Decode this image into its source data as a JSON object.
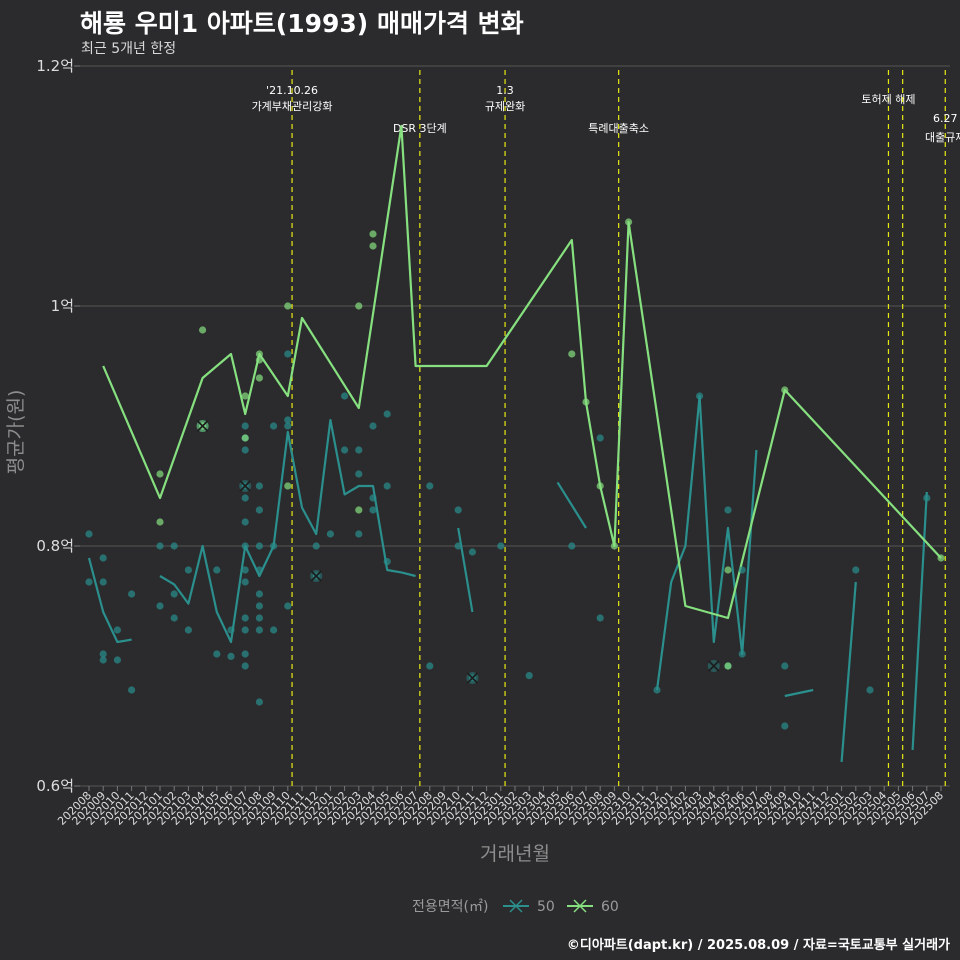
{
  "title": "해룡 우미1 아파트(1993) 매매가격 변화",
  "subtitle": "최근 5개년 한정",
  "caption": "©디아파트(dapt.kr) / 2025.08.09 / 자료=국토교통부 실거래가",
  "colors": {
    "background": "#2b2b2d",
    "s50": "#2a8f8d",
    "s60": "#86e07f",
    "event": "#e8e812",
    "grid": "#555555"
  },
  "chart_data": {
    "type": "line",
    "xlabel": "거래년월",
    "ylabel": "평균가(원)",
    "ylim": [
      0.6,
      1.2
    ],
    "yticks": [
      0.6,
      0.8,
      1.0,
      1.2
    ],
    "yticklabels": [
      "0.6억",
      "0.8억",
      "1억",
      "1.2억"
    ],
    "x": [
      "202008",
      "202009",
      "202010",
      "202011",
      "202012",
      "202101",
      "202102",
      "202103",
      "202104",
      "202105",
      "202106",
      "202107",
      "202108",
      "202109",
      "202110",
      "202111",
      "202112",
      "202201",
      "202202",
      "202203",
      "202204",
      "202205",
      "202206",
      "202207",
      "202208",
      "202209",
      "202210",
      "202211",
      "202212",
      "202301",
      "202302",
      "202303",
      "202304",
      "202305",
      "202306",
      "202307",
      "202308",
      "202309",
      "202310",
      "202311",
      "202312",
      "202401",
      "202402",
      "202403",
      "202404",
      "202405",
      "202406",
      "202407",
      "202408",
      "202409",
      "202410",
      "202411",
      "202412",
      "202501",
      "202502",
      "202503",
      "202504",
      "202505",
      "202506",
      "202507",
      "202508"
    ],
    "legend_title": "전용면적(㎡)",
    "legend_position": "bottom",
    "series": [
      {
        "name": "50",
        "color": "#2a8f8d",
        "lines": [
          [
            [
              0,
              0.79
            ],
            [
              1,
              0.745
            ],
            [
              2,
              0.72
            ],
            [
              3,
              0.722
            ]
          ],
          [
            [
              5,
              0.775
            ],
            [
              6,
              0.768
            ],
            [
              7,
              0.752
            ],
            [
              8,
              0.8
            ],
            [
              9,
              0.745
            ],
            [
              10,
              0.72
            ],
            [
              11,
              0.8
            ],
            [
              12,
              0.775
            ],
            [
              13,
              0.8
            ],
            [
              14,
              0.895
            ],
            [
              15,
              0.832
            ],
            [
              16,
              0.81
            ],
            [
              17,
              0.905
            ],
            [
              18,
              0.843
            ],
            [
              19,
              0.85
            ],
            [
              20,
              0.85
            ],
            [
              21,
              0.78
            ],
            [
              22,
              0.778
            ],
            [
              23,
              0.775
            ]
          ],
          [
            [
              26,
              0.815
            ],
            [
              27,
              0.745
            ]
          ],
          [
            [
              33,
              0.853
            ],
            [
              35,
              0.815
            ]
          ],
          [
            [
              40,
              0.68
            ],
            [
              41,
              0.77
            ],
            [
              42,
              0.8
            ],
            [
              43,
              0.925
            ],
            [
              44,
              0.72
            ],
            [
              45,
              0.815
            ],
            [
              46,
              0.71
            ],
            [
              47,
              0.88
            ]
          ],
          [
            [
              49,
              0.675
            ],
            [
              51,
              0.68
            ]
          ],
          [
            [
              53,
              0.62
            ],
            [
              54,
              0.77
            ]
          ],
          [
            [
              58,
              0.63
            ],
            [
              59,
              0.845
            ]
          ]
        ],
        "points": [
          [
            0,
            0.81
          ],
          [
            0,
            0.77
          ],
          [
            1,
            0.79
          ],
          [
            1,
            0.77
          ],
          [
            1,
            0.71
          ],
          [
            1,
            0.705
          ],
          [
            2,
            0.73
          ],
          [
            2,
            0.705
          ],
          [
            3,
            0.76
          ],
          [
            3,
            0.68
          ],
          [
            5,
            0.8
          ],
          [
            5,
            0.75
          ],
          [
            6,
            0.8
          ],
          [
            6,
            0.76
          ],
          [
            6,
            0.74
          ],
          [
            7,
            0.78
          ],
          [
            7,
            0.73
          ],
          [
            8,
            0.9
          ],
          [
            9,
            0.78
          ],
          [
            9,
            0.71
          ],
          [
            10,
            0.73
          ],
          [
            10,
            0.708
          ],
          [
            11,
            0.9
          ],
          [
            11,
            0.89
          ],
          [
            11,
            0.88
          ],
          [
            11,
            0.85
          ],
          [
            11,
            0.84
          ],
          [
            11,
            0.82
          ],
          [
            11,
            0.8
          ],
          [
            11,
            0.78
          ],
          [
            11,
            0.77
          ],
          [
            11,
            0.74
          ],
          [
            11,
            0.73
          ],
          [
            11,
            0.71
          ],
          [
            11,
            0.7
          ],
          [
            12,
            0.85
          ],
          [
            12,
            0.83
          ],
          [
            12,
            0.8
          ],
          [
            12,
            0.78
          ],
          [
            12,
            0.76
          ],
          [
            12,
            0.75
          ],
          [
            12,
            0.74
          ],
          [
            12,
            0.73
          ],
          [
            12,
            0.67
          ],
          [
            13,
            0.9
          ],
          [
            13,
            0.8
          ],
          [
            13,
            0.73
          ],
          [
            14,
            0.96
          ],
          [
            14,
            0.905
          ],
          [
            14,
            0.9
          ],
          [
            14,
            0.75
          ],
          [
            16,
            0.8
          ],
          [
            16,
            0.775
          ],
          [
            17,
            0.81
          ],
          [
            18,
            0.925
          ],
          [
            18,
            0.88
          ],
          [
            19,
            0.88
          ],
          [
            19,
            0.86
          ],
          [
            19,
            0.81
          ],
          [
            20,
            0.9
          ],
          [
            20,
            0.84
          ],
          [
            20,
            0.83
          ],
          [
            21,
            0.91
          ],
          [
            21,
            0.85
          ],
          [
            21,
            0.787
          ],
          [
            24,
            0.85
          ],
          [
            24,
            0.7
          ],
          [
            26,
            0.83
          ],
          [
            26,
            0.8
          ],
          [
            27,
            0.795
          ],
          [
            27,
            0.69
          ],
          [
            29,
            0.8
          ],
          [
            31,
            0.692
          ],
          [
            34,
            0.8
          ],
          [
            36,
            0.89
          ],
          [
            36,
            0.74
          ],
          [
            40,
            0.68
          ],
          [
            43,
            0.925
          ],
          [
            45,
            0.83
          ],
          [
            45,
            0.7
          ],
          [
            46,
            0.71
          ],
          [
            46,
            0.78
          ],
          [
            49,
            0.7
          ],
          [
            49,
            0.65
          ],
          [
            54,
            0.78
          ],
          [
            55,
            0.68
          ],
          [
            59,
            0.84
          ]
        ],
        "xmarks": [
          [
            8,
            0.9
          ],
          [
            11,
            0.85
          ],
          [
            16,
            0.775
          ],
          [
            27,
            0.69
          ],
          [
            44,
            0.7
          ]
        ]
      },
      {
        "name": "60",
        "color": "#86e07f",
        "lines": [
          [
            [
              1,
              0.95
            ],
            [
              5,
              0.84
            ],
            [
              8,
              0.94
            ],
            [
              10,
              0.96
            ],
            [
              11,
              0.91
            ],
            [
              12,
              0.96
            ],
            [
              14,
              0.925
            ],
            [
              15,
              0.99
            ],
            [
              19,
              0.915
            ],
            [
              22,
              1.15
            ],
            [
              23,
              0.95
            ],
            [
              28,
              0.95
            ],
            [
              34,
              1.055
            ],
            [
              35,
              0.92
            ],
            [
              36,
              0.85
            ],
            [
              37,
              0.8
            ],
            [
              38,
              1.07
            ],
            [
              42,
              0.75
            ],
            [
              45,
              0.74
            ],
            [
              49,
              0.93
            ],
            [
              60,
              0.79
            ]
          ]
        ],
        "points": [
          [
            5,
            0.86
          ],
          [
            5,
            0.82
          ],
          [
            8,
            0.98
          ],
          [
            8,
            0.9
          ],
          [
            11,
            0.925
          ],
          [
            11,
            0.89
          ],
          [
            12,
            0.96
          ],
          [
            12,
            0.955
          ],
          [
            12,
            0.94
          ],
          [
            14,
            1.0
          ],
          [
            14,
            0.85
          ],
          [
            19,
            1.0
          ],
          [
            19,
            0.83
          ],
          [
            20,
            1.06
          ],
          [
            20,
            1.05
          ],
          [
            34,
            0.96
          ],
          [
            35,
            0.92
          ],
          [
            36,
            0.85
          ],
          [
            37,
            0.8
          ],
          [
            38,
            1.07
          ],
          [
            45,
            0.78
          ],
          [
            45,
            0.7
          ],
          [
            49,
            0.93
          ],
          [
            60,
            0.79
          ]
        ],
        "xmarks": [
          [
            8,
            0.9
          ]
        ]
      }
    ],
    "events": [
      {
        "x": 14.3,
        "lines": [
          "'21.10.26",
          "가계부채관리강화"
        ],
        "level": 1
      },
      {
        "x": 23.3,
        "lines": [
          "DSR 3단계"
        ],
        "level": 3
      },
      {
        "x": 29.3,
        "lines": [
          "1.3",
          "규제완화"
        ],
        "level": 1
      },
      {
        "x": 37.3,
        "lines": [
          "특례대출축소"
        ],
        "level": 3
      },
      {
        "x": 56.3,
        "lines": [
          "토허제 해제"
        ],
        "level": 2
      },
      {
        "x": 57.3,
        "lines": [],
        "level": 0
      },
      {
        "x": 60.3,
        "lines": [
          "6.27",
          "대출규제"
        ],
        "level": 4
      }
    ]
  }
}
